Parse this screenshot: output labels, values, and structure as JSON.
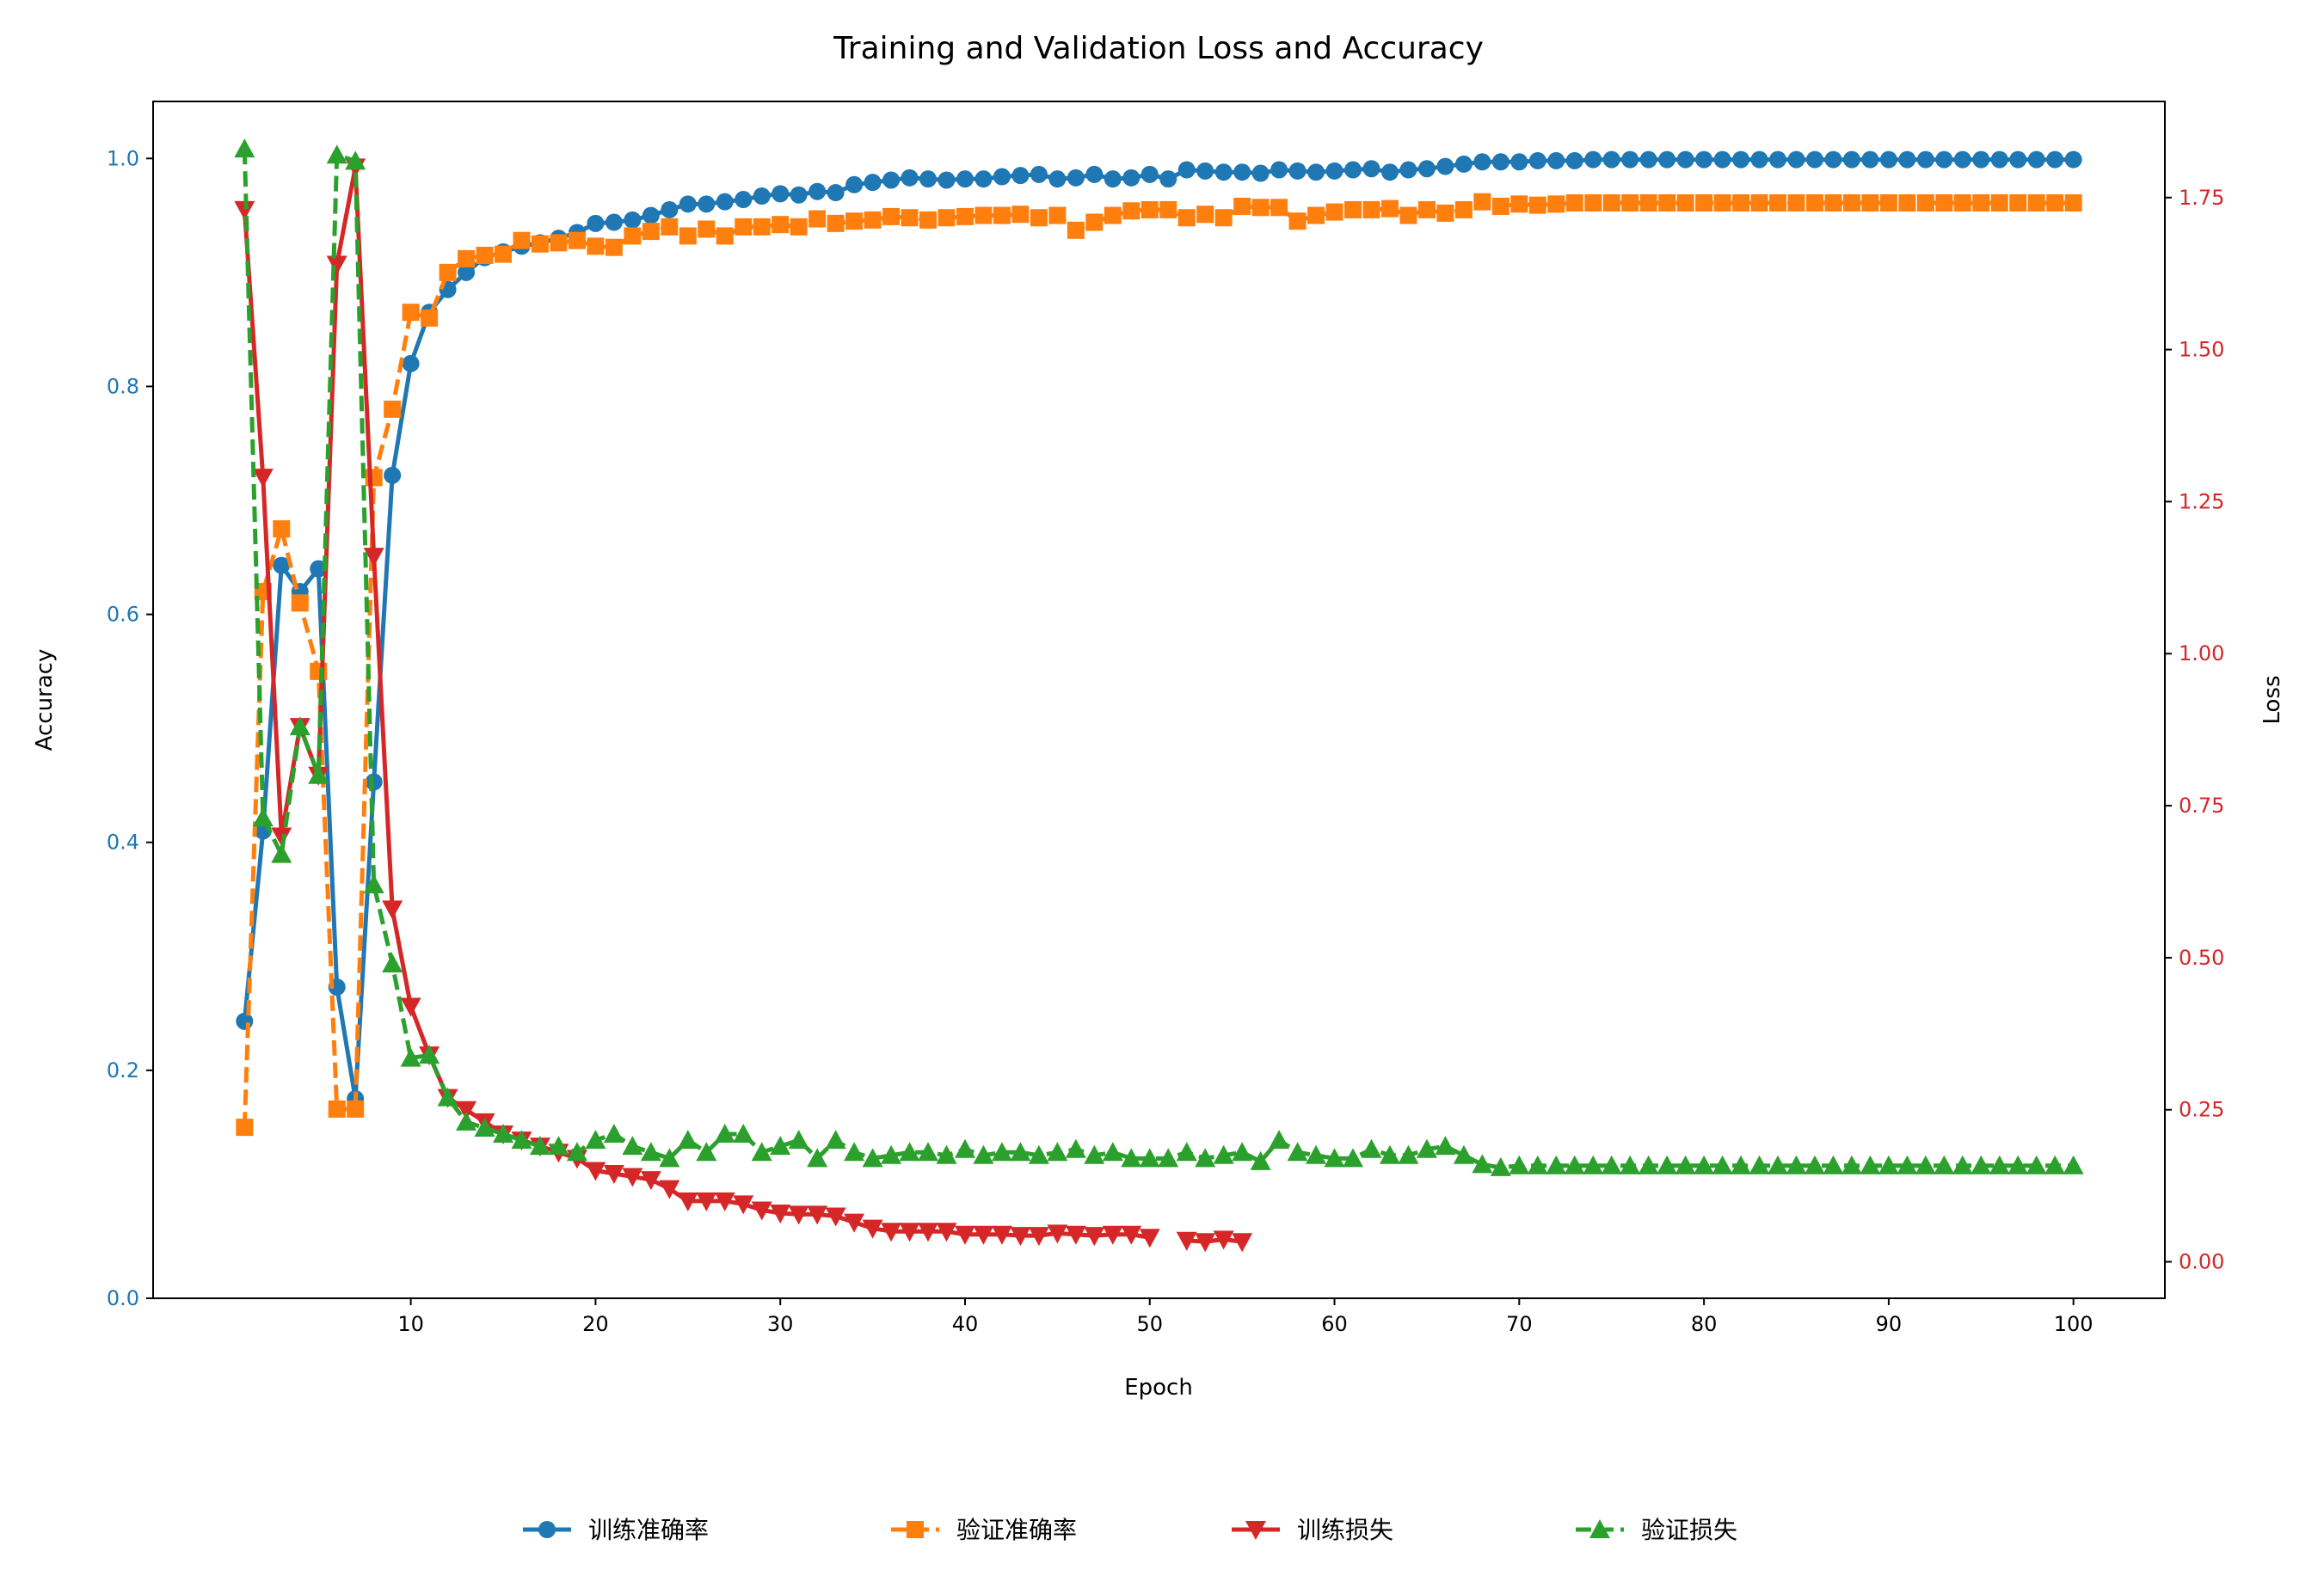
{
  "chart_data": {
    "type": "line",
    "title": "Training and Validation Loss and Accuracy",
    "xlabel": "Epoch",
    "ylabel_left": "Accuracy",
    "ylabel_right": "Loss",
    "xlim": [
      -3.95,
      104.95
    ],
    "ylim_left": [
      0,
      1.05
    ],
    "ylim_right": [
      -0.06,
      1.908
    ],
    "x_ticks": [
      10,
      20,
      30,
      40,
      50,
      60,
      70,
      80,
      90,
      100
    ],
    "y_ticks_left": [
      "0.0",
      "0.2",
      "0.4",
      "0.6",
      "0.8",
      "1.0"
    ],
    "y_ticks_right": [
      "0.00",
      "0.25",
      "0.50",
      "0.75",
      "1.00",
      "1.25",
      "1.50",
      "1.75"
    ],
    "left_tick_color": "#1f77b4",
    "right_tick_color": "#d62728",
    "grid": false,
    "legend_placement": "bottom-center",
    "x_start": 1,
    "series": [
      {
        "name": "训练准确率",
        "axis": "left",
        "color": "#1f77b4",
        "marker": "circle",
        "dashed": false,
        "values": [
          0.243,
          0.41,
          0.643,
          0.62,
          0.64,
          0.273,
          0.175,
          0.453,
          0.722,
          0.82,
          0.865,
          0.885,
          0.9,
          0.913,
          0.918,
          0.923,
          0.926,
          0.93,
          0.935,
          0.943,
          0.944,
          0.946,
          0.95,
          0.955,
          0.96,
          0.96,
          0.962,
          0.964,
          0.967,
          0.969,
          0.968,
          0.971,
          0.97,
          0.977,
          0.979,
          0.981,
          0.983,
          0.982,
          0.981,
          0.982,
          0.982,
          0.984,
          0.985,
          0.986,
          0.982,
          0.983,
          0.986,
          0.982,
          0.983,
          0.986,
          0.982,
          0.99,
          0.989,
          0.988,
          0.988,
          0.987,
          0.99,
          0.989,
          0.988,
          0.989,
          0.99,
          0.991,
          0.988,
          0.99,
          0.991,
          0.993,
          0.995,
          0.997,
          0.997,
          0.997,
          0.998,
          0.998,
          0.998,
          0.999,
          0.999,
          0.999,
          0.999,
          0.999,
          0.999,
          0.999,
          0.999,
          0.999,
          0.999,
          0.999,
          0.999,
          0.999,
          0.999,
          0.999,
          0.999,
          0.999,
          0.999,
          0.999,
          0.999,
          0.999,
          0.999,
          0.999,
          0.999,
          0.999,
          0.999,
          0.999
        ]
      },
      {
        "name": "验证准确率",
        "axis": "left",
        "color": "#ff7f0e",
        "marker": "square",
        "dashed": true,
        "values": [
          0.15,
          0.62,
          0.675,
          0.61,
          0.55,
          0.166,
          0.166,
          0.72,
          0.78,
          0.865,
          0.86,
          0.9,
          0.912,
          0.915,
          0.916,
          0.928,
          0.925,
          0.926,
          0.928,
          0.923,
          0.922,
          0.932,
          0.936,
          0.94,
          0.932,
          0.938,
          0.932,
          0.94,
          0.94,
          0.942,
          0.94,
          0.947,
          0.943,
          0.945,
          0.946,
          0.949,
          0.948,
          0.946,
          0.948,
          0.949,
          0.95,
          0.95,
          0.951,
          0.948,
          0.95,
          0.937,
          0.944,
          0.95,
          0.954,
          0.955,
          0.955,
          0.948,
          0.951,
          0.948,
          0.958,
          0.957,
          0.957,
          0.945,
          0.95,
          0.953,
          0.955,
          0.955,
          0.956,
          0.95,
          0.955,
          0.952,
          0.955,
          0.962,
          0.958,
          0.96,
          0.959,
          0.96,
          0.961,
          0.961,
          0.961,
          0.961,
          0.961,
          0.961,
          0.961,
          0.961,
          0.961,
          0.961,
          0.961,
          0.961,
          0.961,
          0.961,
          0.961,
          0.961,
          0.961,
          0.961,
          0.961,
          0.961,
          0.961,
          0.961,
          0.961,
          0.961,
          0.961,
          0.961,
          0.961,
          0.961
        ]
      },
      {
        "name": "训练损失",
        "axis": "right",
        "color": "#d62728",
        "marker": "triangle-down",
        "dashed": false,
        "values": [
          1.73,
          1.29,
          0.7,
          0.88,
          0.8,
          1.64,
          1.8,
          1.16,
          0.58,
          0.42,
          0.34,
          0.27,
          0.25,
          0.23,
          0.21,
          0.2,
          0.19,
          0.18,
          0.17,
          0.15,
          0.145,
          0.14,
          0.135,
          0.12,
          0.1,
          0.1,
          0.1,
          0.095,
          0.085,
          0.08,
          0.078,
          0.078,
          0.075,
          0.065,
          0.055,
          0.05,
          0.05,
          0.05,
          0.05,
          0.045,
          0.045,
          0.045,
          0.043,
          0.043,
          0.047,
          0.045,
          0.043,
          0.045,
          0.045,
          0.04,
          null,
          0.035,
          0.033,
          0.037,
          0.033,
          null,
          null,
          null,
          null,
          null,
          null,
          null,
          null,
          null,
          null,
          null,
          null,
          null,
          null,
          null,
          null,
          null,
          null,
          null,
          null,
          null,
          null,
          null,
          null,
          null,
          null,
          null,
          null,
          null,
          null,
          null,
          null,
          null,
          null,
          null,
          null,
          null,
          null,
          null,
          null,
          null,
          null,
          null,
          null,
          null
        ]
      },
      {
        "name": "验证损失",
        "axis": "right",
        "color": "#2ca02c",
        "marker": "triangle-up",
        "dashed": true,
        "values": [
          1.83,
          0.73,
          0.67,
          0.88,
          0.8,
          1.82,
          1.81,
          0.62,
          0.49,
          0.335,
          0.34,
          0.27,
          0.23,
          0.22,
          0.21,
          0.2,
          0.19,
          0.19,
          0.18,
          0.2,
          0.21,
          0.19,
          0.18,
          0.17,
          0.2,
          0.18,
          0.21,
          0.21,
          0.18,
          0.19,
          0.2,
          0.17,
          0.2,
          0.18,
          0.17,
          0.175,
          0.18,
          0.18,
          0.175,
          0.185,
          0.175,
          0.18,
          0.18,
          0.175,
          0.18,
          0.185,
          0.175,
          0.18,
          0.17,
          0.17,
          0.17,
          0.18,
          0.17,
          0.175,
          0.18,
          0.165,
          0.2,
          0.18,
          0.175,
          0.17,
          0.17,
          0.185,
          0.175,
          0.175,
          0.185,
          0.19,
          0.175,
          0.16,
          0.155,
          0.158,
          0.158,
          0.158,
          0.158,
          0.158,
          0.158,
          0.158,
          0.158,
          0.158,
          0.158,
          0.158,
          0.158,
          0.158,
          0.158,
          0.158,
          0.158,
          0.158,
          0.158,
          0.158,
          0.158,
          0.158,
          0.158,
          0.158,
          0.158,
          0.158,
          0.158,
          0.158,
          0.158,
          0.158,
          0.158,
          0.158
        ]
      }
    ]
  }
}
